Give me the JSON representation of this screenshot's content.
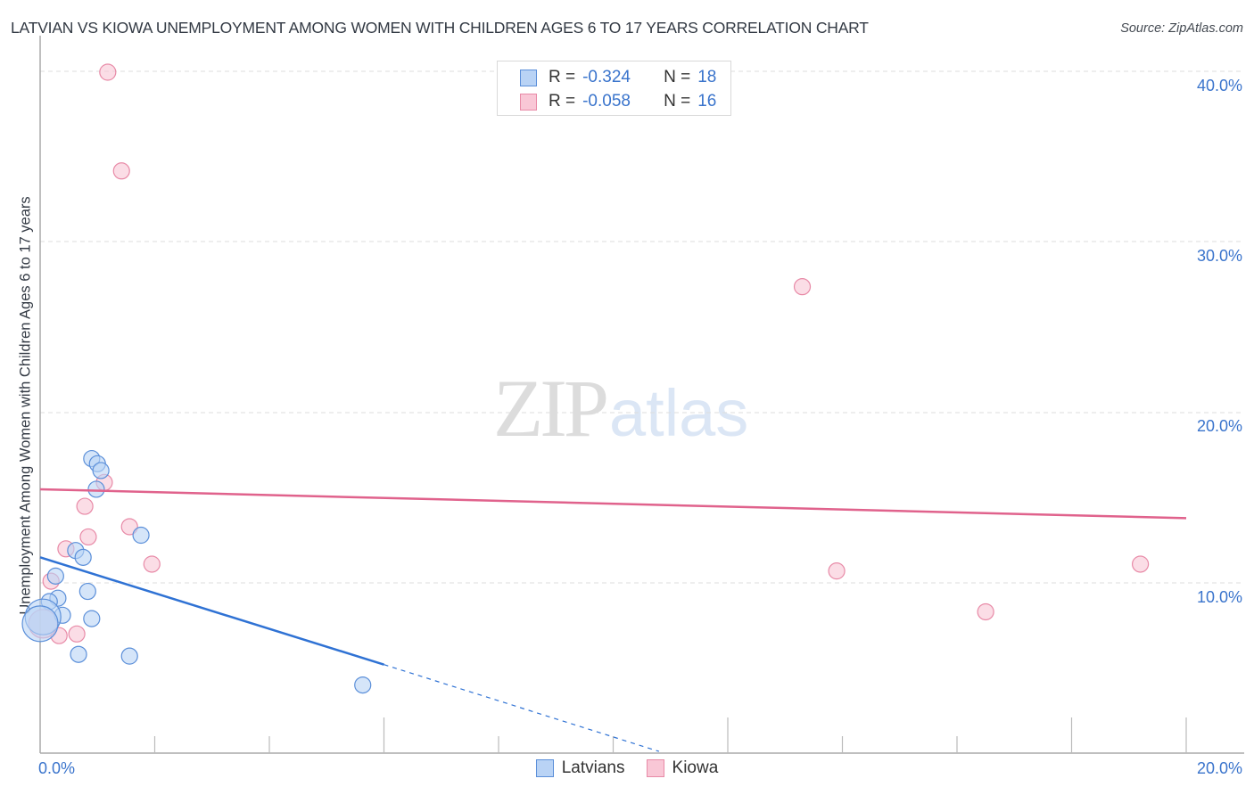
{
  "header": {
    "title": "LATVIAN VS KIOWA UNEMPLOYMENT AMONG WOMEN WITH CHILDREN AGES 6 TO 17 YEARS CORRELATION CHART",
    "source": "Source: ZipAtlas.com"
  },
  "legend": {
    "rows": [
      {
        "r_label": "R =",
        "r_value": "-0.324",
        "n_label": "N =",
        "n_value": "18"
      },
      {
        "r_label": "R =",
        "r_value": "-0.058",
        "n_label": "N =",
        "n_value": "16"
      }
    ]
  },
  "axes": {
    "ylabel": "Unemployment Among Women with Children Ages 6 to 17 years",
    "yticks": [
      "40.0%",
      "30.0%",
      "20.0%",
      "10.0%"
    ],
    "xticks": [
      "0.0%",
      "20.0%"
    ]
  },
  "bottom_legend": {
    "items": [
      "Latvians",
      "Kiowa"
    ]
  },
  "watermark": {
    "zip": "ZIP",
    "atlas": "atlas"
  },
  "colors": {
    "latvians_fill": "#b9d3f5",
    "latvians_stroke": "#5b8fd9",
    "latvians_line": "#2f72d4",
    "kiowa_fill": "#f9c7d6",
    "kiowa_stroke": "#e88aa7",
    "kiowa_line": "#e0628c",
    "tick_label": "#3a74cc"
  },
  "chart_data": {
    "type": "scatter",
    "title": "LATVIAN VS KIOWA UNEMPLOYMENT AMONG WOMEN WITH CHILDREN AGES 6 TO 17 YEARS CORRELATION CHART",
    "xlabel": "",
    "ylabel": "Unemployment Among Women with Children Ages 6 to 17 years",
    "xlim": [
      0,
      20
    ],
    "ylim": [
      0,
      42
    ],
    "x_ticks": [
      "0.0%",
      "20.0%"
    ],
    "y_ticks": [
      "10.0%",
      "20.0%",
      "30.0%",
      "40.0%"
    ],
    "grid": true,
    "legend_position": "top-center",
    "series": [
      {
        "name": "Latvians",
        "R": -0.324,
        "N": 18,
        "points": [
          {
            "x": 0.9,
            "y": 17.3
          },
          {
            "x": 1.0,
            "y": 17.0
          },
          {
            "x": 1.06,
            "y": 16.6
          },
          {
            "x": 0.98,
            "y": 15.5
          },
          {
            "x": 0.62,
            "y": 11.9
          },
          {
            "x": 0.75,
            "y": 11.5
          },
          {
            "x": 1.76,
            "y": 12.8
          },
          {
            "x": 0.27,
            "y": 10.4
          },
          {
            "x": 0.83,
            "y": 9.5
          },
          {
            "x": 0.31,
            "y": 9.1
          },
          {
            "x": 0.16,
            "y": 8.9
          },
          {
            "x": 0.39,
            "y": 8.1
          },
          {
            "x": 0.9,
            "y": 7.9
          },
          {
            "x": 0.05,
            "y": 8.0
          },
          {
            "x": 0.67,
            "y": 5.8
          },
          {
            "x": 1.56,
            "y": 5.7
          },
          {
            "x": 5.63,
            "y": 4.0
          },
          {
            "x": 0.0,
            "y": 7.6
          }
        ],
        "trend": {
          "x0": 0,
          "y0": 11.5,
          "x1": 6.0,
          "y1": 5.2,
          "dashed_to": {
            "x": 10.8,
            "y": 0.1
          }
        }
      },
      {
        "name": "Kiowa",
        "R": -0.058,
        "N": 16,
        "points": [
          {
            "x": 1.18,
            "y": 40.0
          },
          {
            "x": 1.42,
            "y": 34.2
          },
          {
            "x": 13.3,
            "y": 27.4
          },
          {
            "x": 1.12,
            "y": 15.9
          },
          {
            "x": 0.78,
            "y": 14.5
          },
          {
            "x": 1.56,
            "y": 13.3
          },
          {
            "x": 0.84,
            "y": 12.7
          },
          {
            "x": 0.45,
            "y": 12.0
          },
          {
            "x": 1.95,
            "y": 11.1
          },
          {
            "x": 0.19,
            "y": 10.1
          },
          {
            "x": 13.9,
            "y": 10.7
          },
          {
            "x": 19.2,
            "y": 11.1
          },
          {
            "x": 16.5,
            "y": 8.3
          },
          {
            "x": 0.33,
            "y": 6.9
          },
          {
            "x": 0.64,
            "y": 7.0
          },
          {
            "x": 0.05,
            "y": 7.6
          }
        ],
        "trend": {
          "x0": 0,
          "y0": 15.5,
          "x1": 20,
          "y1": 13.8
        }
      }
    ]
  }
}
